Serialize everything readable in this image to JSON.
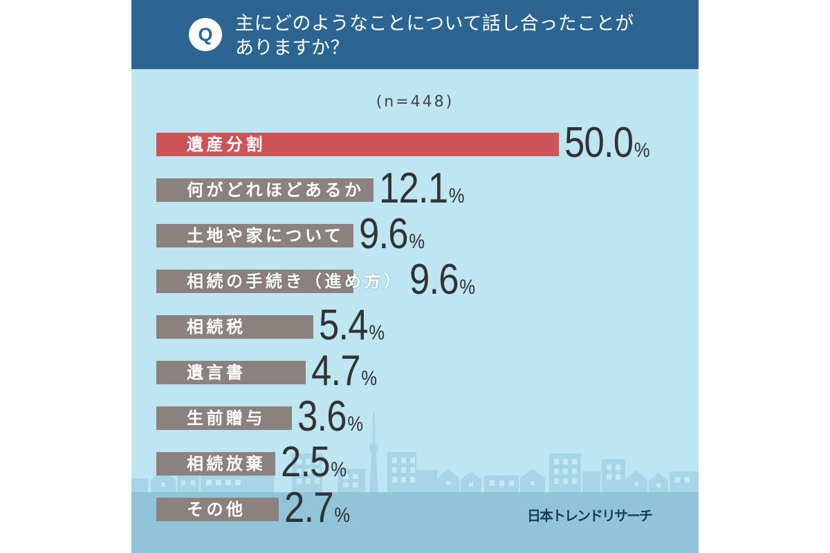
{
  "header": {
    "badge": "Q"
  },
  "chart_data": {
    "type": "bar",
    "orientation": "horizontal",
    "title": "主にどのようなことについて話し合ったことが\nありますか？",
    "sample_size": "(n=448)",
    "categories": [
      "遺産分割",
      "何がどれほどあるか",
      "土地や家について",
      "相続の手続き（進め方）",
      "相続税",
      "遺言書",
      "生前贈与",
      "相続放棄",
      "その他"
    ],
    "values": [
      50.0,
      12.1,
      9.6,
      9.6,
      5.4,
      4.7,
      3.6,
      2.5,
      2.7
    ],
    "unit": "%",
    "bar_colors": [
      "#cc5357",
      "#8b8280",
      "#8b8280",
      "#8b8280",
      "#8b8280",
      "#8b8280",
      "#8b8280",
      "#8b8280",
      "#8b8280"
    ],
    "grid": false,
    "legend": "none"
  },
  "footer": {
    "brand": "日本トレンドリサーチ"
  },
  "colors": {
    "header": "#2c6592",
    "background": "#bde6f2",
    "skyline": "#a6d5e7",
    "ground": "#91c4d9",
    "value_text": "#333333",
    "brand_text": "#1d3a63"
  }
}
